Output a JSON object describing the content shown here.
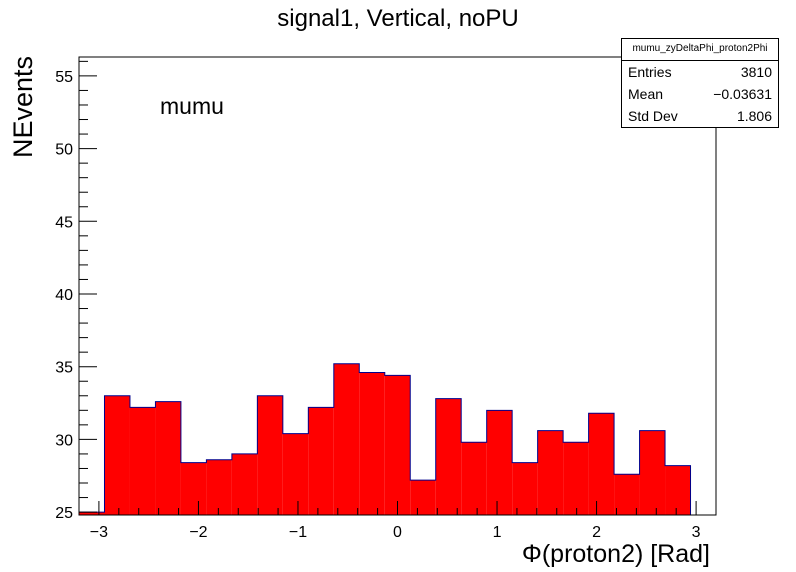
{
  "chart_data": {
    "type": "bar",
    "title": "signal1, Vertical, noPU",
    "xlabel": "Φ(proton2) [Rad]",
    "ylabel": "NEvents",
    "annotation": "mumu",
    "xlim": [
      -3.2,
      3.2
    ],
    "ylim": [
      24.8,
      56.3
    ],
    "xticks": [
      "−3",
      "−2",
      "−1",
      "0",
      "1",
      "2",
      "3"
    ],
    "xtick_values": [
      -3,
      -2,
      -1,
      0,
      1,
      2,
      3
    ],
    "yticks": [
      "25",
      "30",
      "35",
      "40",
      "45",
      "50",
      "55"
    ],
    "ytick_values": [
      25,
      30,
      35,
      40,
      45,
      50,
      55
    ],
    "bin_edges": [
      -3.2,
      -2.944,
      -2.688,
      -2.432,
      -2.176,
      -1.92,
      -1.664,
      -1.408,
      -1.152,
      -0.896,
      -0.64,
      -0.384,
      -0.128,
      0.128,
      0.384,
      0.64,
      0.896,
      1.152,
      1.408,
      1.664,
      1.92,
      2.176,
      2.432,
      2.688,
      2.944,
      3.2
    ],
    "values": [
      25.0,
      33.0,
      32.2,
      32.6,
      28.4,
      28.6,
      29.0,
      33.0,
      30.4,
      32.2,
      35.2,
      34.6,
      34.4,
      27.2,
      32.8,
      29.8,
      32.0,
      28.4,
      30.6,
      29.8,
      31.8,
      27.6,
      30.6,
      28.2,
      24.8
    ],
    "colors": {
      "fill": "#ff0000",
      "line": "#00008b"
    },
    "stats_box": {
      "name": "mumu_zyDeltaPhi_proton2Phi",
      "entries_label": "Entries",
      "entries_value": "3810",
      "mean_label": "Mean",
      "mean_value": "−0.03631",
      "stddev_label": "Std Dev",
      "stddev_value": "1.806"
    }
  }
}
